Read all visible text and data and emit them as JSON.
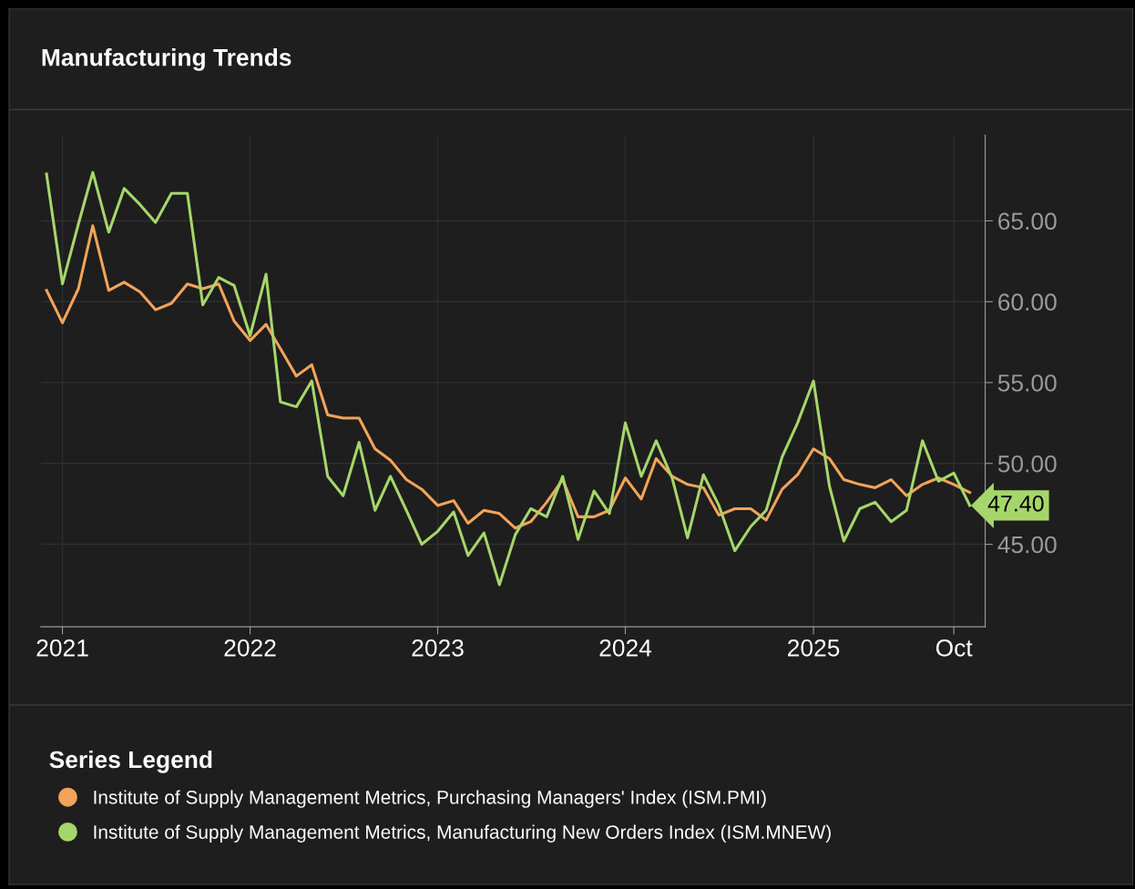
{
  "chart_data": {
    "type": "line",
    "title": "Manufacturing Trends",
    "legend_title": "Series Legend",
    "x": [
      "2020-12",
      "2021-01",
      "2021-02",
      "2021-03",
      "2021-04",
      "2021-05",
      "2021-06",
      "2021-07",
      "2021-08",
      "2021-09",
      "2021-10",
      "2021-11",
      "2021-12",
      "2022-01",
      "2022-02",
      "2022-03",
      "2022-04",
      "2022-05",
      "2022-06",
      "2022-07",
      "2022-08",
      "2022-09",
      "2022-10",
      "2022-11",
      "2022-12",
      "2023-01",
      "2023-02",
      "2023-03",
      "2023-04",
      "2023-05",
      "2023-06",
      "2023-07",
      "2023-08",
      "2023-09",
      "2023-10",
      "2023-11",
      "2023-12",
      "2024-01",
      "2024-02",
      "2024-03",
      "2024-04",
      "2024-05",
      "2024-06",
      "2024-07",
      "2024-08",
      "2024-09",
      "2024-10",
      "2024-11",
      "2024-12",
      "2025-01",
      "2025-02",
      "2025-03",
      "2025-04",
      "2025-05",
      "2025-06",
      "2025-07",
      "2025-08",
      "2025-09",
      "2025-10",
      "2025-11"
    ],
    "series": [
      {
        "name": "Institute of Supply Management Metrics, Purchasing Managers' Index (ISM.PMI)",
        "color": "#f4a35a",
        "values": [
          60.7,
          58.7,
          60.8,
          64.7,
          60.7,
          61.2,
          60.6,
          59.5,
          59.9,
          61.1,
          60.8,
          61.1,
          58.8,
          57.6,
          58.6,
          57.1,
          55.4,
          56.1,
          53.0,
          52.8,
          52.8,
          50.9,
          50.2,
          49.0,
          48.4,
          47.4,
          47.7,
          46.3,
          47.1,
          46.9,
          46.0,
          46.4,
          47.6,
          49.0,
          46.7,
          46.7,
          47.1,
          49.1,
          47.8,
          50.3,
          49.2,
          48.7,
          48.5,
          46.8,
          47.2,
          47.2,
          46.5,
          48.4,
          49.3,
          50.9,
          50.3,
          49.0,
          48.7,
          48.5,
          49.0,
          48.0,
          48.7,
          49.1,
          48.7,
          48.2
        ]
      },
      {
        "name": "Institute of Supply Management Metrics, Manufacturing New Orders Index (ISM.MNEW)",
        "color": "#a6d66b",
        "values": [
          67.9,
          61.1,
          64.8,
          68.0,
          64.3,
          67.0,
          66.0,
          64.9,
          66.7,
          66.7,
          59.8,
          61.5,
          61.0,
          57.9,
          61.7,
          53.8,
          53.5,
          55.1,
          49.2,
          48.0,
          51.3,
          47.1,
          49.2,
          47.1,
          45.0,
          45.8,
          47.0,
          44.3,
          45.7,
          42.5,
          45.6,
          47.2,
          46.7,
          49.2,
          45.3,
          48.3,
          46.9,
          52.5,
          49.2,
          51.4,
          49.1,
          45.4,
          49.3,
          47.4,
          44.6,
          46.1,
          47.1,
          50.4,
          52.5,
          55.1,
          48.6,
          45.2,
          47.2,
          47.6,
          46.4,
          47.1,
          51.4,
          48.9,
          49.4,
          47.4
        ]
      }
    ],
    "xlim": [
      "2020-11-20",
      "2025-12-01"
    ],
    "xticks": [
      {
        "value": "2021-01-01",
        "label": "2021"
      },
      {
        "value": "2022-01-01",
        "label": "2022"
      },
      {
        "value": "2023-01-01",
        "label": "2023"
      },
      {
        "value": "2024-01-01",
        "label": "2024"
      },
      {
        "value": "2025-01-01",
        "label": "2025"
      },
      {
        "value": "2025-10-01",
        "label": "Oct"
      }
    ],
    "ylim": [
      39.9,
      70.3
    ],
    "yticks": [
      {
        "value": 45,
        "label": "45.00"
      },
      {
        "value": 50,
        "label": "50.00"
      },
      {
        "value": 55,
        "label": "55.00"
      },
      {
        "value": 60,
        "label": "60.00"
      },
      {
        "value": 65,
        "label": "65.00"
      }
    ],
    "annotations": [
      {
        "text": "47.40",
        "x": "2025-11",
        "y": 47.4
      }
    ],
    "grid": true,
    "legend": "bottom",
    "marker": "none",
    "line_style": "solid"
  }
}
